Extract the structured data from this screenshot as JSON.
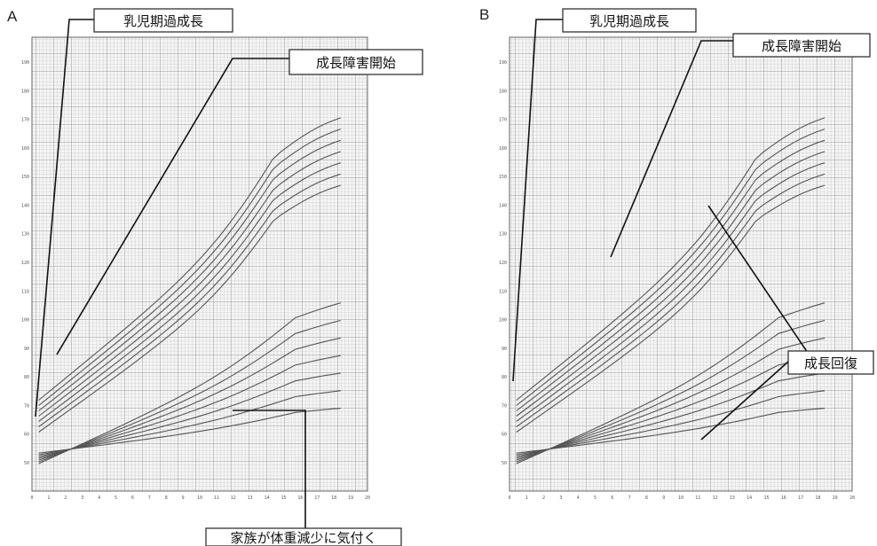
{
  "chart_data": [
    {
      "panel": "A",
      "type": "line",
      "x_ticks": [
        "0",
        "1",
        "2",
        "3",
        "4",
        "5",
        "6",
        "7",
        "8",
        "9",
        "10",
        "11",
        "12",
        "13",
        "14",
        "15",
        "16",
        "17",
        "18",
        "19",
        "20"
      ],
      "y_ticks_left": [
        "50",
        "60",
        "70",
        "80",
        "90",
        "100",
        "110",
        "120",
        "130",
        "140",
        "150",
        "160",
        "170",
        "180",
        "190"
      ],
      "annotations": [
        {
          "text": "乳児期過成長"
        },
        {
          "text": "成長障害開始"
        },
        {
          "text": "家族が体重減少に気付く"
        }
      ]
    },
    {
      "panel": "B",
      "type": "line",
      "x_ticks": [
        "0",
        "1",
        "2",
        "3",
        "4",
        "5",
        "6",
        "7",
        "8",
        "9",
        "10",
        "11",
        "12",
        "13",
        "14",
        "15",
        "16",
        "17",
        "18",
        "19",
        "20"
      ],
      "y_ticks_left": [
        "50",
        "60",
        "70",
        "80",
        "90",
        "100",
        "110",
        "120",
        "130",
        "140",
        "150",
        "160",
        "170",
        "180",
        "190"
      ],
      "annotations": [
        {
          "text": "乳児期過成長"
        },
        {
          "text": "成長障害開始"
        },
        {
          "text": "成長回復"
        }
      ]
    }
  ]
}
